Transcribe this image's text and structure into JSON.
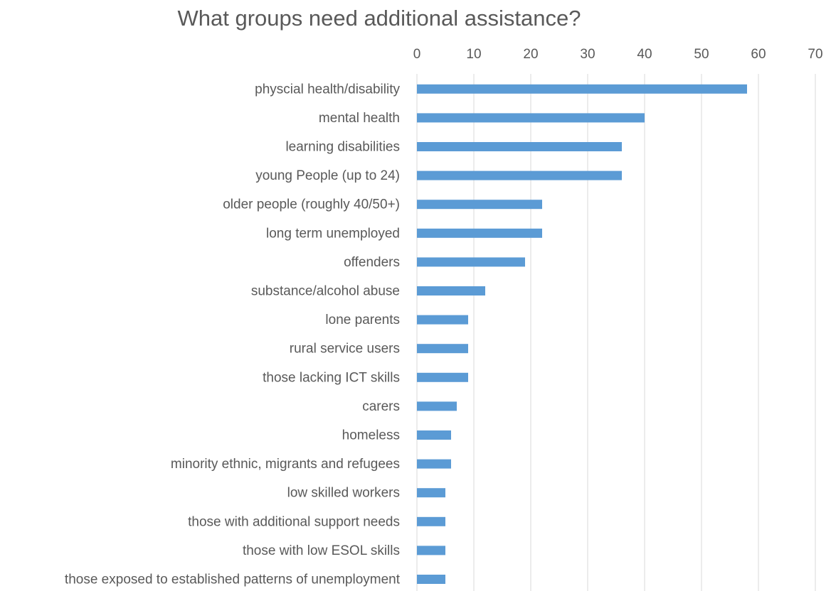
{
  "chart_data": {
    "type": "bar",
    "orientation": "horizontal",
    "title": "What groups need additional assistance?",
    "xlabel": "",
    "ylabel": "",
    "xlim": [
      0,
      70
    ],
    "x_ticks": [
      "0",
      "10",
      "20",
      "30",
      "40",
      "50",
      "60",
      "70"
    ],
    "x_axis_position": "top",
    "grid": true,
    "legend": "none",
    "bar_color": "#5b9bd5",
    "categories": [
      "physcial health/disability",
      "mental health",
      "learning disabilities",
      "young People (up to 24)",
      "older people (roughly  40/50+)",
      "long term unemployed",
      "offenders",
      "substance/alcohol abuse",
      "lone parents",
      "rural service users",
      "those lacking ICT skills",
      "carers",
      "homeless",
      "minority ethnic, migrants and refugees",
      "low skilled workers",
      "those with additional support needs",
      "those with low ESOL skills",
      "those exposed to established patterns of unemployment"
    ],
    "values": [
      58,
      40,
      36,
      36,
      22,
      22,
      19,
      12,
      9,
      9,
      9,
      7,
      6,
      6,
      5,
      5,
      5,
      5
    ]
  }
}
